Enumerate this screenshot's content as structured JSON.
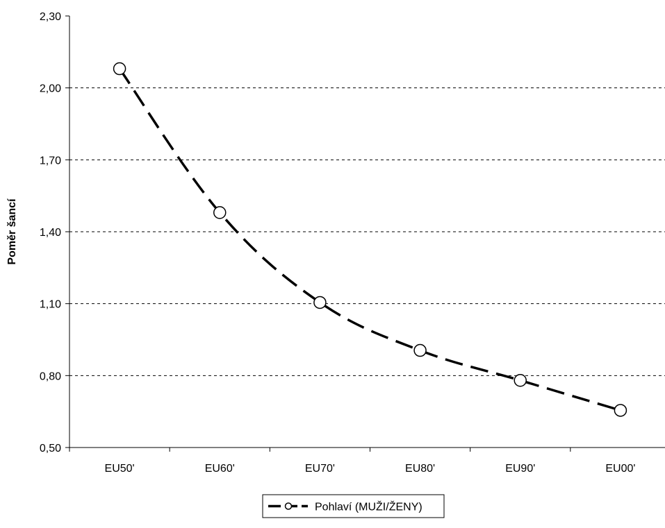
{
  "chart_data": {
    "type": "line",
    "title": "",
    "xlabel": "",
    "ylabel": "Poměr šancí",
    "categories": [
      "EU50'",
      "EU60'",
      "EU70'",
      "EU80'",
      "EU90'",
      "EU00'"
    ],
    "series": [
      {
        "name": "Pohlaví (MUŽI/ŽENY)",
        "values": [
          2.08,
          1.48,
          1.105,
          0.905,
          0.78,
          0.655
        ],
        "line_style": "dashed",
        "marker": "open-circle",
        "color": "#000000"
      }
    ],
    "ylim": [
      0.5,
      2.3
    ],
    "yticks": [
      0.5,
      0.8,
      1.1,
      1.4,
      1.7,
      2.0,
      2.3
    ],
    "ytick_labels": [
      "0,50",
      "0,80",
      "1,10",
      "1,40",
      "1,70",
      "2,00",
      "2,30"
    ],
    "grid": "horizontal-dashed",
    "legend_position": "bottom-center"
  }
}
